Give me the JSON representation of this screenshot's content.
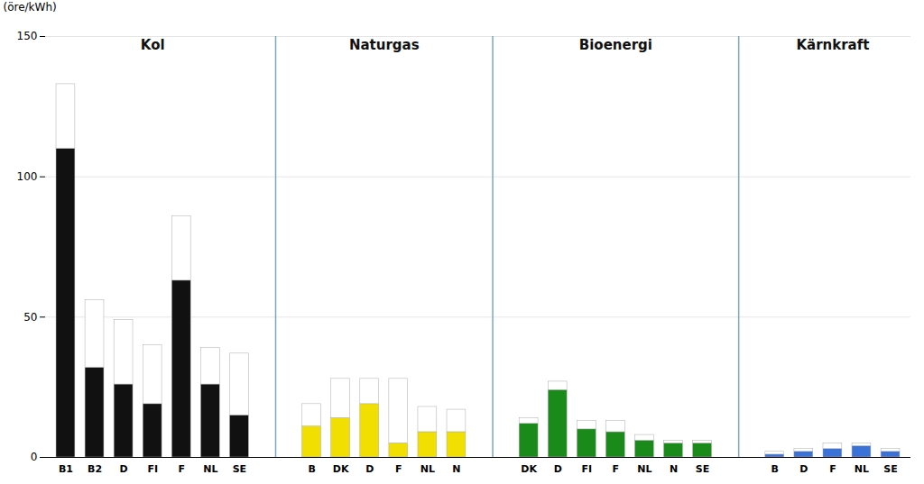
{
  "chart_data": {
    "type": "bar",
    "ylabel": "(öre/kWh)",
    "ylim": [
      0,
      150
    ],
    "yticks": [
      0,
      50,
      100,
      150
    ],
    "grid": true,
    "sections": [
      {
        "title": "Kol",
        "color": "#111111",
        "categories": [
          "B1",
          "B2",
          "D",
          "FI",
          "F",
          "NL",
          "SE"
        ],
        "low": [
          110,
          32,
          26,
          19,
          63,
          26,
          15
        ],
        "high": [
          133,
          56,
          49,
          40,
          86,
          39,
          37
        ]
      },
      {
        "title": "Naturgas",
        "color": "#f0df00",
        "categories": [
          "B",
          "DK",
          "D",
          "F",
          "NL",
          "N"
        ],
        "low": [
          11,
          14,
          19,
          5,
          9,
          9
        ],
        "high": [
          19,
          28,
          28,
          28,
          18,
          17
        ]
      },
      {
        "title": "Bioenergi",
        "color": "#1a8a1a",
        "categories": [
          "DK",
          "D",
          "FI",
          "F",
          "NL",
          "N",
          "SE"
        ],
        "low": [
          12,
          24,
          10,
          9,
          6,
          5,
          5
        ],
        "high": [
          14,
          27,
          13,
          13,
          8,
          6,
          6
        ]
      },
      {
        "title": "Kärnkraft",
        "color": "#3a72d8",
        "categories": [
          "B",
          "D",
          "F",
          "NL",
          "SE"
        ],
        "low": [
          1,
          2,
          3,
          4,
          2
        ],
        "high": [
          2,
          3,
          5,
          5,
          3
        ]
      }
    ]
  }
}
